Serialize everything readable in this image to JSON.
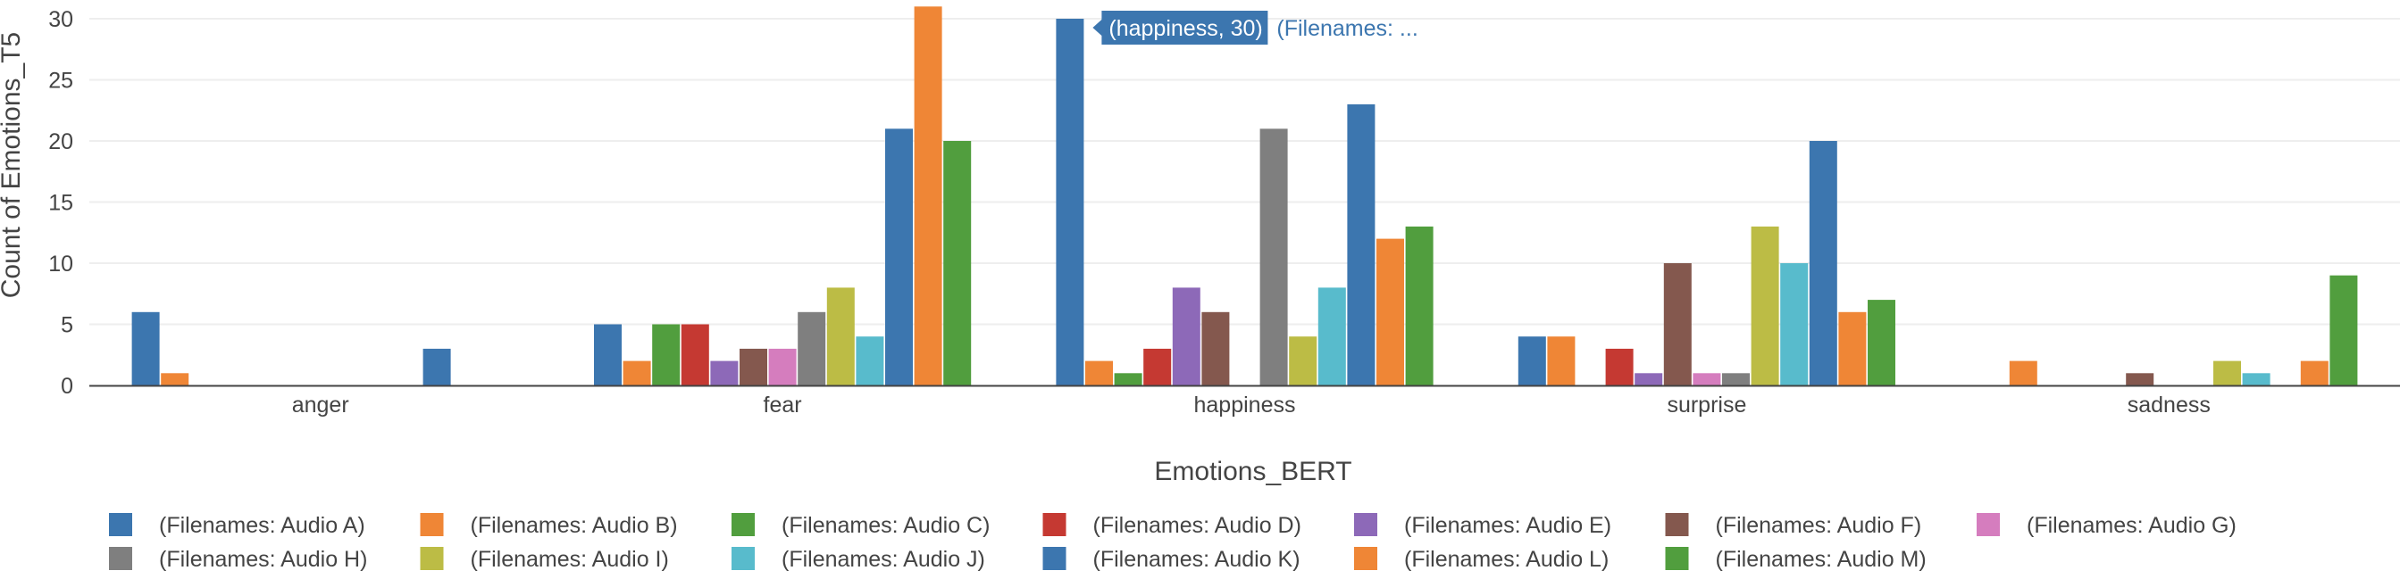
{
  "chart_data": {
    "type": "bar",
    "xlabel": "Emotions_BERT",
    "ylabel": "Count of Emotions_T5",
    "ylim": [
      0,
      30
    ],
    "yticks": [
      0,
      5,
      10,
      15,
      20,
      25,
      30
    ],
    "grid": true,
    "legend_position": "bottom",
    "categories": [
      "anger",
      "fear",
      "happiness",
      "surprise",
      "sadness"
    ],
    "series": [
      {
        "name": "(Filenames: Audio A)",
        "color": "#3c76af",
        "values": [
          6,
          5,
          30,
          4,
          null
        ]
      },
      {
        "name": "(Filenames: Audio B)",
        "color": "#ef8636",
        "values": [
          1,
          2,
          2,
          4,
          2
        ]
      },
      {
        "name": "(Filenames: Audio C)",
        "color": "#519e3e",
        "values": [
          null,
          5,
          1,
          null,
          null
        ]
      },
      {
        "name": "(Filenames: Audio D)",
        "color": "#c53932",
        "values": [
          null,
          5,
          3,
          3,
          null
        ]
      },
      {
        "name": "(Filenames: Audio E)",
        "color": "#8d69b8",
        "values": [
          null,
          2,
          8,
          1,
          null
        ]
      },
      {
        "name": "(Filenames: Audio F)",
        "color": "#84584e",
        "values": [
          null,
          3,
          6,
          10,
          1
        ]
      },
      {
        "name": "(Filenames: Audio G)",
        "color": "#d57dbe",
        "values": [
          null,
          3,
          null,
          1,
          null
        ]
      },
      {
        "name": "(Filenames: Audio H)",
        "color": "#7f7f7f",
        "values": [
          null,
          6,
          21,
          1,
          null
        ]
      },
      {
        "name": "(Filenames: Audio I)",
        "color": "#bcbc45",
        "values": [
          null,
          8,
          4,
          13,
          2
        ]
      },
      {
        "name": "(Filenames: Audio J)",
        "color": "#58bbcc",
        "values": [
          null,
          4,
          8,
          10,
          1
        ]
      },
      {
        "name": "(Filenames: Audio K)",
        "color": "#3c76af",
        "values": [
          3,
          21,
          23,
          20,
          null
        ]
      },
      {
        "name": "(Filenames: Audio L)",
        "color": "#ef8636",
        "values": [
          null,
          31,
          12,
          6,
          2
        ]
      },
      {
        "name": "(Filenames: Audio M)",
        "color": "#519e3e",
        "values": [
          null,
          20,
          13,
          7,
          9
        ]
      }
    ],
    "hover": {
      "category": "happiness",
      "series": "(Filenames: Audio A)",
      "label": "(happiness, 30)",
      "extra": "(Filenames: ..."
    }
  }
}
